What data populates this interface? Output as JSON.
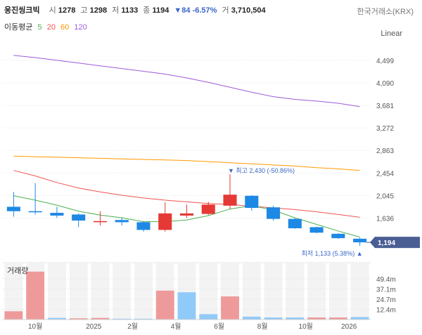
{
  "header": {
    "stock_name": "웅진씽크빅",
    "open_label": "시",
    "open": "1278",
    "high_label": "고",
    "high": "1298",
    "low_label": "저",
    "low": "1133",
    "close_label": "종",
    "close": "1194",
    "change": "▼84 -6.57%",
    "volume_label": "거",
    "volume": "3,710,504",
    "exchange": "한국거래소(KRX)"
  },
  "moving_averages": {
    "label": "이동평균",
    "items": [
      {
        "period": "5",
        "color": "#4caf50"
      },
      {
        "period": "20",
        "color": "#ef5350"
      },
      {
        "period": "60",
        "color": "#ff9800"
      },
      {
        "period": "120",
        "color": "#9c5bd9"
      }
    ]
  },
  "scale_mode": "Linear",
  "colors": {
    "up": "#e53935",
    "down": "#1e88e5",
    "last_price_bg": "#4a5e94"
  },
  "chart_data": {
    "type": "candlestick",
    "price_axis": {
      "ylim": [
        940,
        4830
      ],
      "ticks": [
        4499,
        4090,
        3681,
        3272,
        2863,
        2454,
        2045,
        1636
      ],
      "tick_labels": [
        "4,499",
        "4,090",
        "3,681",
        "3,272",
        "2,863",
        "2,454",
        "2,045",
        "1,636"
      ]
    },
    "candles": [
      {
        "o": 1840,
        "h": 2110,
        "l": 1660,
        "c": 1760
      },
      {
        "o": 1760,
        "h": 2270,
        "l": 1700,
        "c": 1740
      },
      {
        "o": 1730,
        "h": 1840,
        "l": 1640,
        "c": 1680
      },
      {
        "o": 1700,
        "h": 1720,
        "l": 1470,
        "c": 1590
      },
      {
        "o": 1560,
        "h": 1760,
        "l": 1500,
        "c": 1580
      },
      {
        "o": 1600,
        "h": 1640,
        "l": 1500,
        "c": 1560
      },
      {
        "o": 1560,
        "h": 1580,
        "l": 1390,
        "c": 1420
      },
      {
        "o": 1420,
        "h": 1920,
        "l": 1390,
        "c": 1720
      },
      {
        "o": 1680,
        "h": 1880,
        "l": 1640,
        "c": 1720
      },
      {
        "o": 1710,
        "h": 1930,
        "l": 1690,
        "c": 1880
      },
      {
        "o": 1860,
        "h": 2430,
        "l": 1800,
        "c": 2060
      },
      {
        "o": 2040,
        "h": 2050,
        "l": 1770,
        "c": 1820
      },
      {
        "o": 1830,
        "h": 1860,
        "l": 1590,
        "c": 1620
      },
      {
        "o": 1620,
        "h": 1630,
        "l": 1440,
        "c": 1450
      },
      {
        "o": 1470,
        "h": 1480,
        "l": 1360,
        "c": 1370
      },
      {
        "o": 1350,
        "h": 1360,
        "l": 1260,
        "c": 1270
      },
      {
        "o": 1260,
        "h": 1280,
        "l": 1133,
        "c": 1194
      }
    ],
    "ma_lines": [
      {
        "period": "120",
        "values": [
          4590,
          4550,
          4500,
          4450,
          4400,
          4350,
          4300,
          4250,
          4180,
          4100,
          4010,
          3920,
          3840,
          3790,
          3760,
          3720,
          3660
        ]
      },
      {
        "period": "60",
        "values": [
          2760,
          2750,
          2740,
          2730,
          2720,
          2710,
          2700,
          2690,
          2680,
          2660,
          2640,
          2620,
          2600,
          2580,
          2550,
          2530,
          2500
        ]
      },
      {
        "period": "20",
        "values": [
          2500,
          2400,
          2280,
          2180,
          2110,
          2050,
          2000,
          1960,
          1930,
          1900,
          1880,
          1850,
          1820,
          1790,
          1750,
          1700,
          1650
        ]
      },
      {
        "period": "5",
        "values": [
          2040,
          1960,
          1870,
          1760,
          1690,
          1640,
          1570,
          1570,
          1600,
          1680,
          1800,
          1860,
          1780,
          1640,
          1520,
          1400,
          1290
        ]
      }
    ],
    "annotations": {
      "high": {
        "text": "▼ 최고 2,430 (-50.86%)",
        "value": 2430,
        "candle": 10
      },
      "low": {
        "text": "최저 1,133 (5.38%) ▲",
        "value": 1133,
        "candle": 16
      },
      "last_price": {
        "text": "1,194",
        "value": 1194
      }
    },
    "volume": {
      "label": "거래량",
      "ylim": [
        0,
        68
      ],
      "ticks": [
        49.4,
        37.1,
        24.7,
        12.4
      ],
      "tick_labels": [
        "49.4m",
        "37.1m",
        "24.7m",
        "12.4m"
      ],
      "values": [
        10,
        58,
        2,
        1.5,
        2,
        1,
        1,
        35,
        33,
        6.5,
        28,
        3.5,
        2.5,
        2.5,
        2.5,
        2.5,
        3
      ],
      "dirs": [
        "up",
        "up",
        "down",
        "up",
        "up",
        "down",
        "down",
        "up",
        "down",
        "down",
        "up",
        "down",
        "down",
        "down",
        "up",
        "up",
        "down"
      ]
    },
    "x_axis": {
      "labels": [
        {
          "text": "10월",
          "candle": 1
        },
        {
          "text": "2025",
          "candle": 3.7
        },
        {
          "text": "2월",
          "candle": 5.5
        },
        {
          "text": "4월",
          "candle": 7.5
        },
        {
          "text": "6월",
          "candle": 9.5
        },
        {
          "text": "8월",
          "candle": 11.5
        },
        {
          "text": "10월",
          "candle": 13.5
        },
        {
          "text": "2026",
          "candle": 15.5
        }
      ]
    }
  }
}
